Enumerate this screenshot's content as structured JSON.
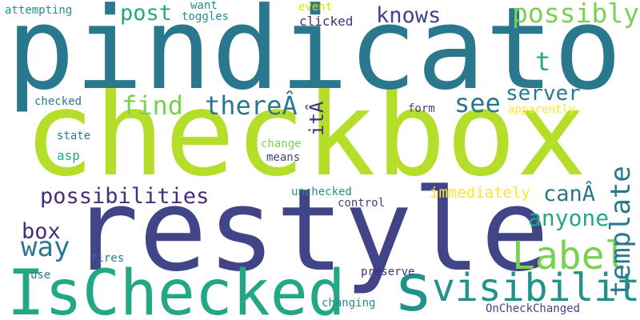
{
  "words": [
    {
      "text": "checkbox",
      "color": "#b5de2b"
    },
    {
      "text": "pindicator",
      "color": "#2a788e"
    },
    {
      "text": "restyle",
      "color": "#414487"
    },
    {
      "text": "IsChecked",
      "color": "#22a884"
    },
    {
      "text": "visibility",
      "color": "#21918c"
    },
    {
      "text": "Label",
      "color": "#7ad151"
    },
    {
      "text": "s",
      "color": "#21918c"
    },
    {
      "text": "template",
      "color": "#2a788e"
    },
    {
      "text": "possibly",
      "color": "#7ad151"
    },
    {
      "text": "knows",
      "color": "#414487"
    },
    {
      "text": "find",
      "color": "#7ad151"
    },
    {
      "text": "thereÂ",
      "color": "#2a788e"
    },
    {
      "text": "see",
      "color": "#2a788e"
    },
    {
      "text": "server",
      "color": "#2a788e"
    },
    {
      "text": "possibilities",
      "color": "#472d7b"
    },
    {
      "text": "way",
      "color": "#2a788e"
    },
    {
      "text": "box",
      "color": "#472d7b"
    },
    {
      "text": "canÂ",
      "color": "#2a788e"
    },
    {
      "text": "anyone",
      "color": "#22a884"
    },
    {
      "text": "post",
      "color": "#22a884"
    },
    {
      "text": "t",
      "color": "#22a884"
    },
    {
      "text": "itÂ",
      "color": "#472d7b"
    },
    {
      "text": "immediately",
      "color": "#fde725"
    },
    {
      "text": "attempting",
      "color": "#21918c"
    },
    {
      "text": "toggles",
      "color": "#21918c"
    },
    {
      "text": "want",
      "color": "#21918c"
    },
    {
      "text": "event",
      "color": "#d8e219"
    },
    {
      "text": "clicked",
      "color": "#472d7b"
    },
    {
      "text": "checked",
      "color": "#2a788e"
    },
    {
      "text": "apparently",
      "color": "#fde725"
    },
    {
      "text": "form",
      "color": "#414487"
    },
    {
      "text": "change",
      "color": "#7ad151"
    },
    {
      "text": "means",
      "color": "#414487"
    },
    {
      "text": "state",
      "color": "#2a788e"
    },
    {
      "text": "asp",
      "color": "#22a884"
    },
    {
      "text": "unchecked",
      "color": "#21918c"
    },
    {
      "text": "control",
      "color": "#414487"
    },
    {
      "text": "fires",
      "color": "#2a788e"
    },
    {
      "text": "use",
      "color": "#2a788e"
    },
    {
      "text": "preserve",
      "color": "#472d7b"
    },
    {
      "text": "changing",
      "color": "#21918c"
    },
    {
      "text": "OnCheckChanged",
      "color": "#414487"
    }
  ]
}
